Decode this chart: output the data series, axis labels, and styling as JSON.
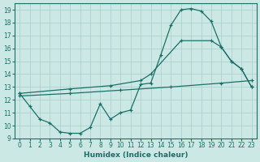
{
  "xlabel": "Humidex (Indice chaleur)",
  "bg_color": "#cce8e5",
  "line_color": "#1a7068",
  "grid_color": "#a8ccca",
  "xlim": [
    -0.5,
    23.5
  ],
  "ylim": [
    9,
    19.5
  ],
  "xticks": [
    0,
    1,
    2,
    3,
    4,
    5,
    6,
    7,
    8,
    9,
    10,
    11,
    12,
    13,
    14,
    15,
    16,
    17,
    18,
    19,
    20,
    21,
    22,
    23
  ],
  "yticks": [
    9,
    10,
    11,
    12,
    13,
    14,
    15,
    16,
    17,
    18,
    19
  ],
  "curve1_x": [
    0,
    1,
    2,
    3,
    4,
    5,
    6,
    7,
    8,
    9,
    10,
    11,
    12,
    13,
    14,
    15,
    16,
    17,
    18,
    19,
    20,
    21,
    22,
    23
  ],
  "curve1_y": [
    12.5,
    11.5,
    10.5,
    10.2,
    9.5,
    9.4,
    9.4,
    9.85,
    11.7,
    10.5,
    11.0,
    11.2,
    13.2,
    13.3,
    15.5,
    17.8,
    19.0,
    19.1,
    18.9,
    18.1,
    16.1,
    15.0,
    14.4,
    13.0
  ],
  "line2_x": [
    0,
    5,
    9,
    12,
    13,
    16,
    19,
    20,
    21,
    22,
    23
  ],
  "line2_y": [
    12.5,
    12.85,
    13.1,
    13.5,
    14.0,
    16.6,
    16.6,
    16.1,
    15.0,
    14.4,
    13.0
  ],
  "line3_x": [
    0,
    5,
    10,
    15,
    20,
    23
  ],
  "line3_y": [
    12.3,
    12.5,
    12.75,
    13.0,
    13.3,
    13.5
  ]
}
